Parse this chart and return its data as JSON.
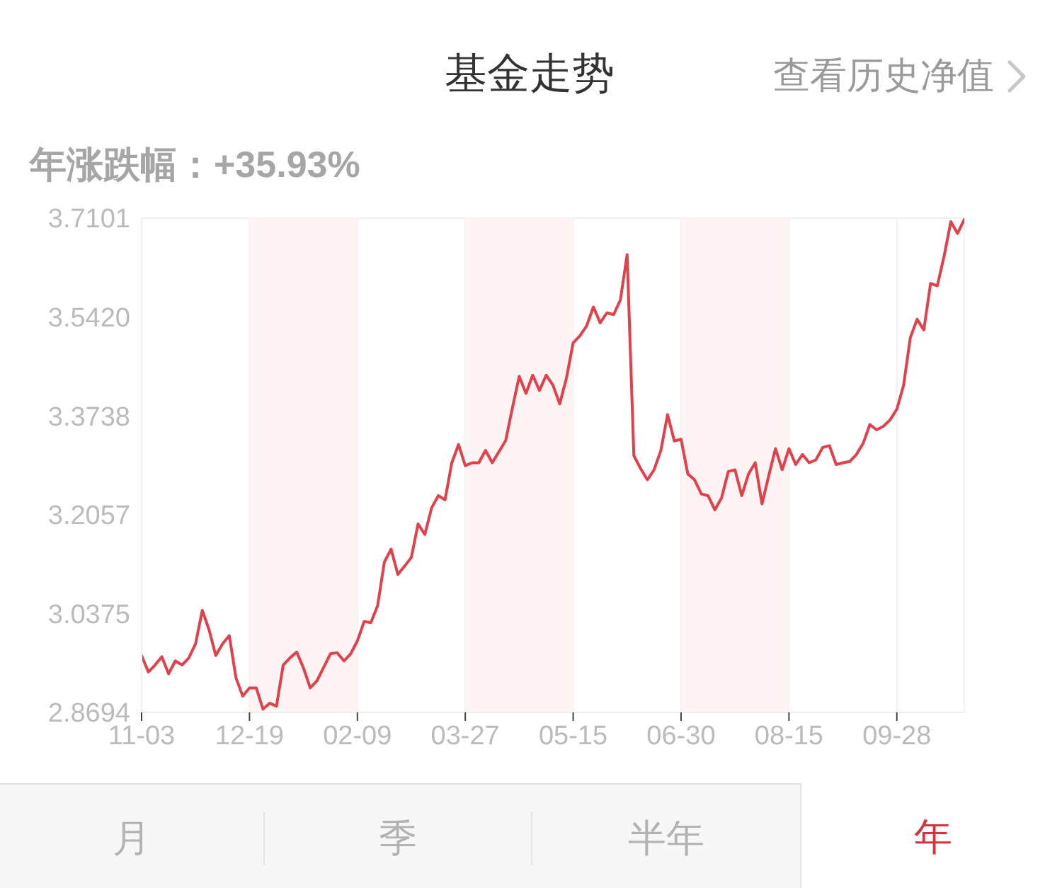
{
  "chart_data": {
    "type": "line",
    "title": "基金走势",
    "subtitle": "年涨跌幅：+35.93%",
    "annotations": [
      "查看历史净值",
      "月",
      "季",
      "半年",
      "年"
    ],
    "categories": [
      "11-03",
      null,
      null,
      null,
      null,
      null,
      null,
      null,
      null,
      null,
      null,
      null,
      null,
      null,
      null,
      null,
      "12-19",
      null,
      null,
      null,
      null,
      null,
      null,
      null,
      null,
      null,
      null,
      null,
      null,
      null,
      null,
      null,
      "02-09",
      null,
      null,
      null,
      null,
      null,
      null,
      null,
      null,
      null,
      null,
      null,
      null,
      null,
      null,
      null,
      "03-27",
      null,
      null,
      null,
      null,
      null,
      null,
      null,
      null,
      null,
      null,
      null,
      null,
      null,
      null,
      null,
      "05-15",
      null,
      null,
      null,
      null,
      null,
      null,
      null,
      null,
      null,
      null,
      null,
      null,
      null,
      null,
      null,
      "06-30",
      null,
      null,
      null,
      null,
      null,
      null,
      null,
      null,
      null,
      null,
      null,
      null,
      null,
      null,
      null,
      "08-15",
      null,
      null,
      null,
      null,
      null,
      null,
      null,
      null,
      null,
      null,
      null,
      null,
      null,
      null,
      null,
      "09-28",
      null,
      null,
      null,
      null,
      null,
      null,
      null,
      null,
      null,
      null
    ],
    "series": [
      {
        "color": "#e2404a",
        "values": [
          2.966,
          2.938,
          2.95,
          2.964,
          2.935,
          2.957,
          2.95,
          2.962,
          2.986,
          3.043,
          3.01,
          2.966,
          2.986,
          3.0,
          2.928,
          2.897,
          2.911,
          2.911,
          2.875,
          2.885,
          2.88,
          2.95,
          2.962,
          2.972,
          2.945,
          2.911,
          2.923,
          2.946,
          2.969,
          2.971,
          2.957,
          2.969,
          2.991,
          3.024,
          3.022,
          3.051,
          3.125,
          3.147,
          3.104,
          3.118,
          3.133,
          3.19,
          3.172,
          3.217,
          3.238,
          3.231,
          3.294,
          3.325,
          3.289,
          3.294,
          3.294,
          3.315,
          3.294,
          3.313,
          3.332,
          3.388,
          3.441,
          3.412,
          3.443,
          3.417,
          3.443,
          3.426,
          3.394,
          3.438,
          3.498,
          3.51,
          3.527,
          3.559,
          3.532,
          3.549,
          3.546,
          3.571,
          3.648,
          3.306,
          3.284,
          3.265,
          3.282,
          3.315,
          3.376,
          3.331,
          3.334,
          3.275,
          3.265,
          3.241,
          3.238,
          3.214,
          3.234,
          3.279,
          3.282,
          3.238,
          3.275,
          3.294,
          3.224,
          3.272,
          3.318,
          3.282,
          3.318,
          3.291,
          3.308,
          3.294,
          3.299,
          3.32,
          3.323,
          3.291,
          3.294,
          3.296,
          3.308,
          3.327,
          3.359,
          3.35,
          3.356,
          3.367,
          3.385,
          3.426,
          3.507,
          3.538,
          3.52,
          3.599,
          3.595,
          3.645,
          3.704,
          3.684,
          3.708
        ]
      }
    ],
    "ylim": [
      2.8694,
      3.7101
    ],
    "yticks": [
      2.8694,
      3.0375,
      3.2057,
      3.3738,
      {
        "value": 3.542,
        "label": "3.5420"
      },
      3.7101
    ],
    "grid": true,
    "marker": "none",
    "line_style": "solid",
    "bands": [
      {
        "axis": "x",
        "from": "12-19",
        "to": "02-09",
        "color": "#fdf4f3"
      },
      {
        "axis": "x",
        "from": "03-27",
        "to": "05-15",
        "color": "#fdf4f3"
      },
      {
        "axis": "x",
        "from": "06-30",
        "to": "08-15",
        "color": "#fdf4f3"
      }
    ]
  }
}
